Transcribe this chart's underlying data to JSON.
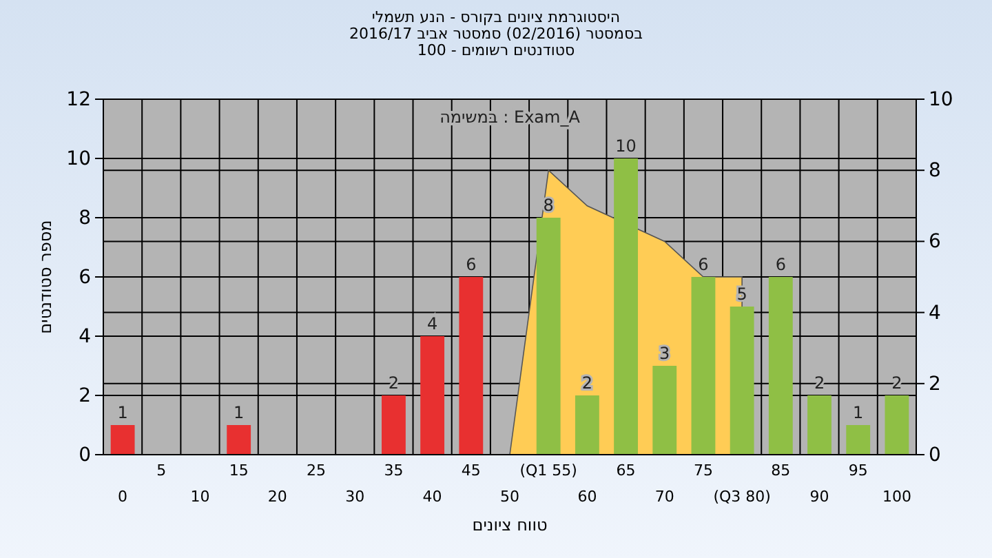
{
  "chart_data": {
    "type": "bar",
    "title": "היסטוגרמת ציונים בקורס - הנע תשמלי",
    "subtitle": "בסמסטר  (02/2016)  סמסטר אביב 2016/17\nסטודנטים רשומים - 100",
    "xlabel": "טווח ציונים",
    "ylabel": "מספר סטודנטים",
    "annotations": [
      "במשימה : Exam_A"
    ],
    "categories": [
      "0",
      "5",
      "10",
      "15",
      "20",
      "25",
      "30",
      "35",
      "40",
      "45",
      "50",
      "(Q1 55)",
      "60",
      "65",
      "70",
      "75",
      "(Q3 80)",
      "85",
      "90",
      "95",
      "100"
    ],
    "series": [
      {
        "type": "area",
        "axis": "y2",
        "color": "#ffcc55",
        "values": [
          null,
          null,
          null,
          null,
          null,
          null,
          null,
          null,
          null,
          null,
          0,
          8,
          7,
          null,
          6,
          5,
          5,
          null,
          null,
          null,
          null
        ]
      },
      {
        "colors": [
          "#e83030",
          "#e83030",
          "#e83030",
          "#e83030",
          "#e83030",
          "#e83030",
          "#e83030",
          "#e83030",
          "#e83030",
          "#e83030",
          "#e83030",
          "#8fbf45",
          "#8fbf45",
          "#8fbf45",
          "#8fbf45",
          "#8fbf45",
          "#8fbf45",
          "#8fbf45",
          "#8fbf45",
          "#8fbf45",
          "#8fbf45"
        ],
        "values": [
          1,
          0,
          0,
          1,
          0,
          0,
          0,
          2,
          4,
          6,
          0,
          8,
          2,
          10,
          3,
          6,
          5,
          6,
          2,
          1,
          2
        ],
        "value_labels": [
          "1",
          null,
          null,
          "1",
          null,
          null,
          null,
          "2",
          "4",
          "6",
          null,
          "8",
          "2",
          "10",
          "3",
          "6",
          "5",
          "6",
          "2",
          "1",
          "2"
        ]
      }
    ],
    "ylim": [
      0,
      12
    ],
    "yticks": [
      0,
      2,
      4,
      6,
      8,
      10,
      12
    ],
    "y2lim": [
      0,
      10
    ],
    "y2ticks": [
      0,
      2,
      4,
      6,
      8,
      10
    ],
    "grid": true
  }
}
